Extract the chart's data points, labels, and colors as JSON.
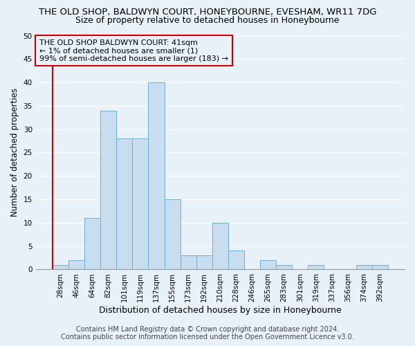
{
  "title1": "THE OLD SHOP, BALDWYN COURT, HONEYBOURNE, EVESHAM, WR11 7DG",
  "title2": "Size of property relative to detached houses in Honeybourne",
  "xlabel": "Distribution of detached houses by size in Honeybourne",
  "ylabel": "Number of detached properties",
  "footer1": "Contains HM Land Registry data © Crown copyright and database right 2024.",
  "footer2": "Contains public sector information licensed under the Open Government Licence v3.0.",
  "annotation_line1": "THE OLD SHOP BALDWYN COURT: 41sqm",
  "annotation_line2": "← 1% of detached houses are smaller (1)",
  "annotation_line3": "99% of semi-detached houses are larger (183) →",
  "categories": [
    "28sqm",
    "46sqm",
    "64sqm",
    "82sqm",
    "101sqm",
    "119sqm",
    "137sqm",
    "155sqm",
    "173sqm",
    "192sqm",
    "210sqm",
    "228sqm",
    "246sqm",
    "265sqm",
    "283sqm",
    "301sqm",
    "319sqm",
    "337sqm",
    "356sqm",
    "374sqm",
    "392sqm"
  ],
  "values": [
    1,
    2,
    11,
    34,
    28,
    28,
    40,
    15,
    3,
    3,
    10,
    4,
    0,
    2,
    1,
    0,
    1,
    0,
    0,
    1,
    1
  ],
  "bar_color": "#c9ddf0",
  "bar_edge_color": "#6aaed6",
  "highlight_line_color": "#cc0000",
  "ylim": [
    0,
    50
  ],
  "yticks": [
    0,
    5,
    10,
    15,
    20,
    25,
    30,
    35,
    40,
    45,
    50
  ],
  "background_color": "#e8f0f8",
  "grid_color": "#ffffff",
  "annotation_box_edge_color": "#cc0000",
  "title1_fontsize": 9.5,
  "title2_fontsize": 9,
  "xlabel_fontsize": 9,
  "ylabel_fontsize": 8.5,
  "tick_fontsize": 7.5,
  "annotation_fontsize": 8,
  "footer_fontsize": 7
}
